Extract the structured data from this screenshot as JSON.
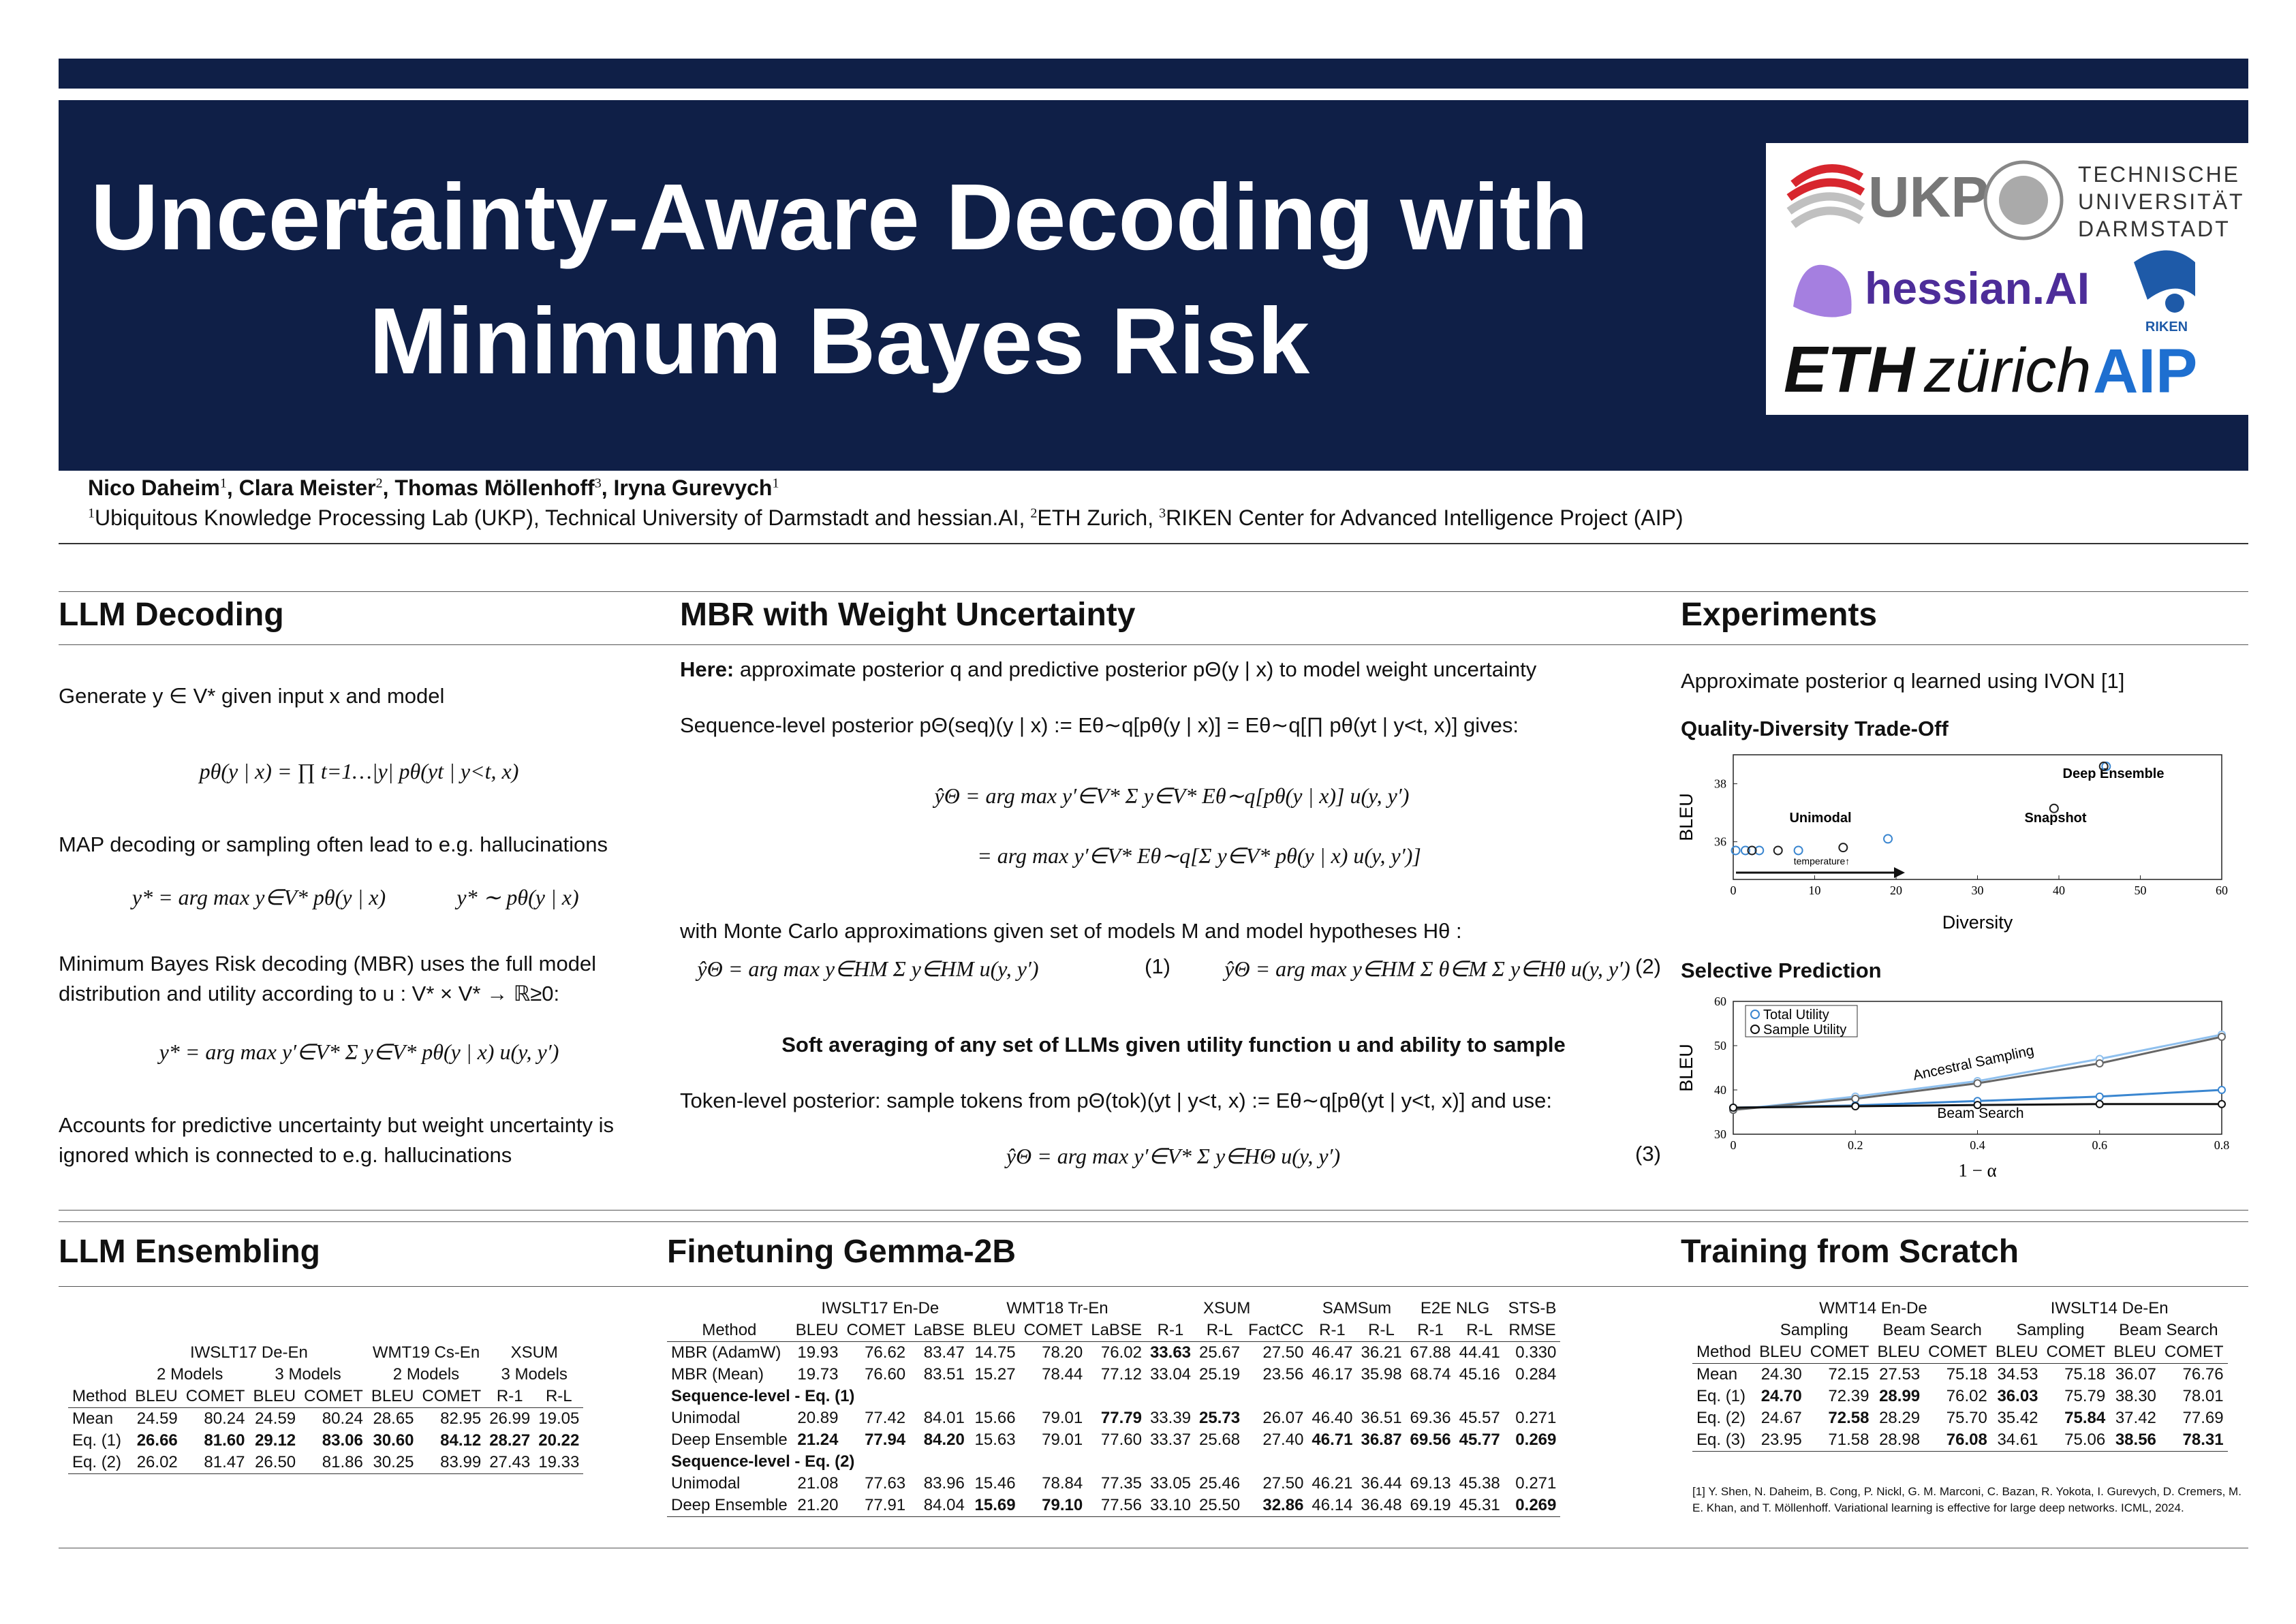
{
  "header": {
    "title_lines": [
      "Uncertainty-Aware Decoding with",
      "Minimum Bayes Risk"
    ],
    "authors": [
      {
        "text": "Nico Daheim",
        "sup": "1"
      },
      {
        "text": ", Clara Meister",
        "sup": "2"
      },
      {
        "text": ", Thomas Möllenhoff",
        "sup": "3"
      },
      {
        "text": ", Iryna Gurevych",
        "sup": "1"
      }
    ],
    "affiliations": [
      {
        "sup": "1",
        "text": "Ubiquitous Knowledge Processing Lab (UKP), Technical University of Darmstadt and hessian.AI,"
      },
      {
        "sup": "2",
        "text": "ETH Zurich,"
      },
      {
        "sup": "3",
        "text": "RIKEN Center for Advanced Intelligence Project (AIP)"
      }
    ]
  },
  "logos": {
    "ukp": "UKP",
    "tu": [
      "TECHNISCHE",
      "UNIVERSITÄT",
      "DARMSTADT"
    ],
    "hessian": "hessian.AI",
    "riken": "RIKEN",
    "eth": "ETH",
    "zurich": "zürich",
    "aip": "AIP"
  },
  "llm_decoding": {
    "heading": "LLM Decoding",
    "p1": "Generate y ∈ V* given input x and model",
    "eq1": "pθ(y | x) = ∏ t=1…|y| pθ(yt | y<t, x)",
    "p2": "MAP decoding or sampling often lead to e.g. hallucinations",
    "eq2a": "y* = arg max y∈V* pθ(y | x)",
    "eq2b": "y* ∼ pθ(y | x)",
    "p3": "Minimum Bayes Risk decoding (MBR) uses the full model distribution and utility according to u : V* × V* → ℝ≥0:",
    "eq3": "y* = arg max y′∈V* Σ y∈V* pθ(y | x) u(y, y′)",
    "p4": "Accounts for predictive uncertainty but weight uncertainty is ignored which is connected to e.g. hallucinations"
  },
  "mbr": {
    "heading": "MBR with Weight Uncertainty",
    "here_bold": "Here:",
    "here_text": "approximate posterior q and predictive posterior pΘ(y | x) to model weight uncertainty",
    "seq_posterior": "Sequence-level posterior pΘ(seq)(y | x) := Eθ∼q[pθ(y | x)] = Eθ∼q[∏ pθ(yt | y<t, x)] gives:",
    "eq_a": "ŷΘ = arg max y′∈V* Σ y∈V* Eθ∼q[pθ(y | x)] u(y, y′)",
    "eq_b": "= arg max y′∈V* Eθ∼q[Σ y∈V* pθ(y | x) u(y, y′)]",
    "monte_carlo": "with Monte Carlo approximations given set of models M and model hypotheses Hθ :",
    "eq1": "ŷΘ = arg max y∈HM Σ y∈HM u(y, y′)",
    "eq1_num": "(1)",
    "eq2": "ŷΘ = arg max y∈HM Σ θ∈M Σ y∈Hθ u(y, y′)",
    "eq2_num": "(2)",
    "highlight": "Soft averaging of any set of LLMs given utility function u and ability to sample",
    "token_level": "Token-level posterior: sample tokens from pΘ(tok)(yt | y<t, x) := Eθ∼q[pθ(yt | y<t, x)] and use:",
    "eq3": "ŷΘ = arg max y′∈V* Σ y∈HΘ u(y, y′)",
    "eq3_num": "(3)"
  },
  "experiments": {
    "heading": "Experiments",
    "intro": "Approximate posterior q learned using IVON [1]"
  },
  "chart_data": [
    {
      "type": "scatter",
      "title": "Quality-Diversity Trade-Off",
      "x_label": "Diversity",
      "y_label": "BLEU",
      "xlim": [
        0,
        60
      ],
      "ylim": [
        34.7,
        39
      ],
      "xticks": [
        0,
        10,
        20,
        30,
        40,
        50,
        60
      ],
      "yticks": [
        36,
        38
      ],
      "series": [
        {
          "color": "#3a86d0",
          "x": [
            0.3,
            1.5,
            3.2,
            8,
            19,
            45.8
          ],
          "values": [
            35.7,
            35.7,
            35.7,
            35.7,
            36.1,
            38.6
          ]
        },
        {
          "color": "#222222",
          "x": [
            2.3,
            5.5,
            13.5,
            39.4,
            45.5
          ],
          "values": [
            35.7,
            35.7,
            35.8,
            37.15,
            38.6
          ]
        }
      ],
      "annotations": [
        "Unimodal",
        "Snapshot",
        "Deep Ensemble",
        "temperature↑"
      ]
    },
    {
      "type": "line",
      "title": "Selective Prediction",
      "x_label": "1 − α",
      "y_label": "BLEU",
      "x": [
        0,
        0.2,
        0.4,
        0.6,
        0.8
      ],
      "xlim": [
        0,
        0.8
      ],
      "ylim": [
        30,
        60
      ],
      "xticks": [
        0,
        0.2,
        0.4,
        0.6,
        0.8
      ],
      "yticks": [
        30,
        40,
        50,
        60
      ],
      "legend_position": "upper left",
      "legend": [
        {
          "name": "Total Utility",
          "color": "#3a86d0"
        },
        {
          "name": "Sample Utility",
          "color": "#111111"
        }
      ],
      "groups": [
        {
          "label": "Ancestral Sampling",
          "series": [
            {
              "color": "#8fc0ee",
              "values": [
                35.5,
                38.5,
                42,
                47,
                52.5
              ]
            },
            {
              "color": "#666666",
              "values": [
                35.5,
                38,
                41.5,
                46,
                52
              ]
            }
          ]
        },
        {
          "label": "Beam Search",
          "series": [
            {
              "color": "#3a86d0",
              "values": [
                36,
                36.5,
                37.5,
                38.5,
                40
              ]
            },
            {
              "color": "#111111",
              "values": [
                36,
                36.3,
                36.6,
                36.8,
                36.8
              ]
            }
          ]
        }
      ]
    }
  ],
  "ensembling": {
    "heading": "LLM Ensembling",
    "table": {
      "groups": [
        [
          {
            "label": "IWSLT17 De-En",
            "span": 4
          },
          {
            "label": "WMT19 Cs-En",
            "span": 2
          },
          {
            "label": "XSUM",
            "span": 2
          }
        ],
        [
          {
            "label": "2 Models",
            "span": 2
          },
          {
            "label": "3 Models",
            "span": 2
          },
          {
            "label": "2 Models",
            "span": 2
          },
          {
            "label": "3 Models",
            "span": 2
          }
        ]
      ],
      "columns": [
        "Method",
        "BLEU",
        "COMET",
        "BLEU",
        "COMET",
        "BLEU",
        "COMET",
        "R-1",
        "R-L"
      ],
      "rows": [
        {
          "cells": [
            "Mean",
            "24.59",
            "80.24",
            "24.59",
            "80.24",
            "28.65",
            "82.95",
            "26.99",
            "19.05"
          ]
        },
        {
          "cells": [
            "Eq. (1)",
            "26.66",
            "81.60",
            "29.12",
            "83.06",
            "30.60",
            "84.12",
            "28.27",
            "20.22"
          ],
          "bold": [
            1,
            2,
            3,
            4,
            5,
            6,
            7,
            8
          ]
        },
        {
          "cells": [
            "Eq. (2)",
            "26.02",
            "81.47",
            "26.50",
            "81.86",
            "30.25",
            "83.99",
            "27.43",
            "19.33"
          ]
        }
      ]
    }
  },
  "finetuning": {
    "heading": "Finetuning Gemma-2B",
    "table": {
      "groups": [
        [
          {
            "label": "IWSLT17 En-De",
            "span": 3
          },
          {
            "label": "WMT18 Tr-En",
            "span": 3
          },
          {
            "label": "XSUM",
            "span": 3
          },
          {
            "label": "SAMSum",
            "span": 2
          },
          {
            "label": "E2E NLG",
            "span": 2
          },
          {
            "label": "STS-B",
            "span": 1
          }
        ]
      ],
      "columns": [
        "Method",
        "BLEU",
        "COMET",
        "LaBSE",
        "BLEU",
        "COMET",
        "LaBSE",
        "R-1",
        "R-L",
        "FactCC",
        "R-1",
        "R-L",
        "R-1",
        "R-L",
        "RMSE"
      ],
      "rows": [
        {
          "cells": [
            "MBR (AdamW)",
            "19.93",
            "76.62",
            "83.47",
            "14.75",
            "78.20",
            "76.02",
            "33.63",
            "25.67",
            "27.50",
            "46.47",
            "36.21",
            "67.88",
            "44.41",
            "0.330"
          ],
          "bold": [
            7
          ]
        },
        {
          "cells": [
            "MBR (Mean)",
            "19.73",
            "76.60",
            "83.51",
            "15.27",
            "78.44",
            "77.12",
            "33.04",
            "25.19",
            "23.56",
            "46.17",
            "35.98",
            "68.74",
            "45.16",
            "0.284"
          ]
        },
        {
          "section": "Sequence-level - Eq. (1)"
        },
        {
          "cells": [
            "Unimodal",
            "20.89",
            "77.42",
            "84.01",
            "15.66",
            "79.01",
            "77.79",
            "33.39",
            "25.73",
            "26.07",
            "46.40",
            "36.51",
            "69.36",
            "45.57",
            "0.271"
          ],
          "bold": [
            6,
            8
          ]
        },
        {
          "cells": [
            "Deep Ensemble",
            "21.24",
            "77.94",
            "84.20",
            "15.63",
            "79.01",
            "77.60",
            "33.37",
            "25.68",
            "27.40",
            "46.71",
            "36.87",
            "69.56",
            "45.77",
            "0.269"
          ],
          "bold": [
            1,
            2,
            3,
            10,
            11,
            12,
            13,
            14
          ]
        },
        {
          "section": "Sequence-level - Eq. (2)"
        },
        {
          "cells": [
            "Unimodal",
            "21.08",
            "77.63",
            "83.96",
            "15.46",
            "78.84",
            "77.35",
            "33.05",
            "25.46",
            "27.50",
            "46.21",
            "36.44",
            "69.13",
            "45.38",
            "0.271"
          ]
        },
        {
          "cells": [
            "Deep Ensemble",
            "21.20",
            "77.91",
            "84.04",
            "15.69",
            "79.10",
            "77.56",
            "33.10",
            "25.50",
            "32.86",
            "46.14",
            "36.48",
            "69.19",
            "45.31",
            "0.269"
          ],
          "bold": [
            4,
            5,
            9,
            14
          ]
        }
      ]
    }
  },
  "scratch": {
    "heading": "Training from Scratch",
    "table": {
      "groups": [
        [
          {
            "label": "WMT14 En-De",
            "span": 4
          },
          {
            "label": "IWSLT14 De-En",
            "span": 4
          }
        ],
        [
          {
            "label": "Sampling",
            "span": 2
          },
          {
            "label": "Beam Search",
            "span": 2
          },
          {
            "label": "Sampling",
            "span": 2
          },
          {
            "label": "Beam Search",
            "span": 2
          }
        ]
      ],
      "columns": [
        "Method",
        "BLEU",
        "COMET",
        "BLEU",
        "COMET",
        "BLEU",
        "COMET",
        "BLEU",
        "COMET"
      ],
      "rows": [
        {
          "cells": [
            "Mean",
            "24.30",
            "72.15",
            "27.53",
            "75.18",
            "34.53",
            "75.18",
            "36.07",
            "76.76"
          ]
        },
        {
          "cells": [
            "Eq. (1)",
            "24.70",
            "72.39",
            "28.99",
            "76.02",
            "36.03",
            "75.79",
            "38.30",
            "78.01"
          ],
          "bold": [
            1,
            3,
            5
          ]
        },
        {
          "cells": [
            "Eq. (2)",
            "24.67",
            "72.58",
            "28.29",
            "75.70",
            "35.42",
            "75.84",
            "37.42",
            "77.69"
          ],
          "bold": [
            2,
            6
          ]
        },
        {
          "cells": [
            "Eq. (3)",
            "23.95",
            "71.58",
            "28.98",
            "76.08",
            "34.61",
            "75.06",
            "38.56",
            "78.31"
          ],
          "bold": [
            4,
            7,
            8
          ]
        }
      ]
    },
    "reference": {
      "label": "[1]",
      "text": "Y. Shen, N. Daheim, B. Cong, P. Nickl, G. M. Marconi, C. Bazan, R. Yokota, I. Gurevych, D. Cremers, M. E. Khan, and T. Möllenhoff. Variational learning is effective for large deep networks. ICML, 2024."
    }
  }
}
